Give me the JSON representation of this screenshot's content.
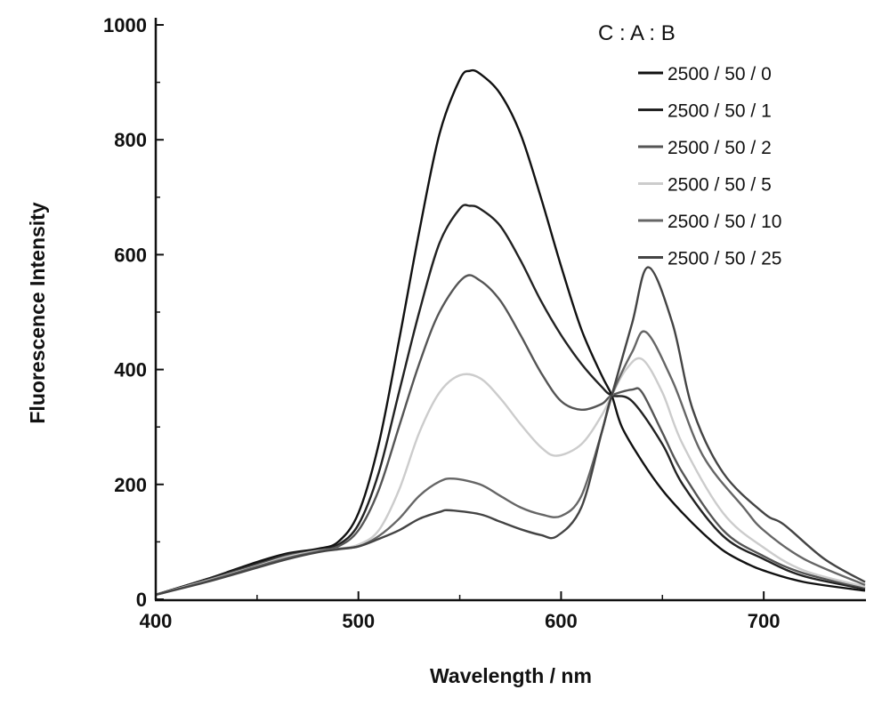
{
  "chart_data": {
    "type": "line",
    "xlabel": "Wavelength / nm",
    "ylabel": "Fluorescence Intensity",
    "xlim": [
      400,
      750
    ],
    "ylim": [
      0,
      1000
    ],
    "xticks": [
      400,
      500,
      600,
      700
    ],
    "yticks": [
      0,
      200,
      400,
      600,
      800,
      1000
    ],
    "grid": false,
    "legend_title": "C : A : B",
    "legend_position": "top-right",
    "series": [
      {
        "name": "2500 / 50 / 0",
        "color": "#111111",
        "x": [
          400,
          425,
          450,
          465,
          480,
          490,
          500,
          510,
          520,
          530,
          540,
          550,
          555,
          560,
          570,
          580,
          590,
          600,
          610,
          620,
          625,
          630,
          640,
          650,
          660,
          670,
          680,
          690,
          700,
          720,
          750
        ],
        "y": [
          8,
          35,
          65,
          80,
          88,
          100,
          150,
          270,
          450,
          640,
          810,
          905,
          920,
          915,
          880,
          810,
          700,
          580,
          470,
          390,
          355,
          300,
          240,
          190,
          150,
          115,
          85,
          65,
          50,
          30,
          15
        ]
      },
      {
        "name": "2500 / 50 / 1",
        "color": "#222222",
        "x": [
          400,
          425,
          450,
          465,
          480,
          490,
          500,
          510,
          520,
          530,
          540,
          550,
          555,
          560,
          570,
          580,
          590,
          600,
          610,
          620,
          625,
          635,
          650,
          660,
          680,
          700,
          720,
          750
        ],
        "y": [
          8,
          35,
          62,
          78,
          86,
          95,
          130,
          220,
          360,
          500,
          620,
          680,
          685,
          680,
          650,
          590,
          520,
          460,
          410,
          370,
          355,
          345,
          270,
          200,
          110,
          70,
          40,
          18
        ]
      },
      {
        "name": "2500 / 50 / 2",
        "color": "#555555",
        "x": [
          400,
          425,
          450,
          465,
          480,
          490,
          500,
          510,
          520,
          530,
          540,
          552,
          560,
          570,
          580,
          590,
          600,
          610,
          620,
          625,
          635,
          640,
          650,
          660,
          680,
          700,
          720,
          750
        ],
        "y": [
          8,
          33,
          60,
          76,
          85,
          92,
          120,
          190,
          300,
          410,
          500,
          560,
          555,
          520,
          460,
          395,
          345,
          330,
          340,
          355,
          365,
          360,
          290,
          220,
          120,
          75,
          45,
          20
        ]
      },
      {
        "name": "2500 / 50 / 5",
        "color": "#cccccc",
        "x": [
          400,
          425,
          450,
          465,
          480,
          490,
          500,
          510,
          520,
          530,
          540,
          550,
          560,
          570,
          580,
          590,
          598,
          610,
          620,
          625,
          632,
          640,
          650,
          660,
          680,
          700,
          720,
          750
        ],
        "y": [
          8,
          32,
          58,
          74,
          84,
          88,
          95,
          120,
          190,
          290,
          360,
          390,
          385,
          350,
          305,
          265,
          250,
          270,
          320,
          355,
          400,
          418,
          360,
          270,
          150,
          90,
          50,
          22
        ]
      },
      {
        "name": "2500 / 50 / 10",
        "color": "#666666",
        "x": [
          400,
          425,
          450,
          465,
          480,
          490,
          500,
          510,
          520,
          530,
          540,
          547,
          560,
          570,
          580,
          590,
          600,
          610,
          620,
          625,
          635,
          642,
          655,
          670,
          690,
          700,
          720,
          750
        ],
        "y": [
          8,
          31,
          57,
          72,
          83,
          88,
          92,
          110,
          140,
          180,
          205,
          210,
          200,
          180,
          160,
          148,
          145,
          180,
          290,
          355,
          430,
          465,
          380,
          250,
          160,
          120,
          70,
          25
        ]
      },
      {
        "name": "2500 / 50 / 25",
        "color": "#444444",
        "x": [
          400,
          425,
          450,
          465,
          480,
          490,
          500,
          510,
          520,
          530,
          540,
          545,
          560,
          570,
          580,
          590,
          598,
          610,
          620,
          625,
          635,
          643,
          655,
          665,
          680,
          700,
          710,
          730,
          750
        ],
        "y": [
          8,
          30,
          55,
          70,
          82,
          87,
          92,
          105,
          120,
          140,
          152,
          155,
          148,
          135,
          122,
          112,
          110,
          160,
          290,
          355,
          480,
          578,
          480,
          330,
          220,
          150,
          130,
          70,
          30
        ]
      }
    ]
  }
}
